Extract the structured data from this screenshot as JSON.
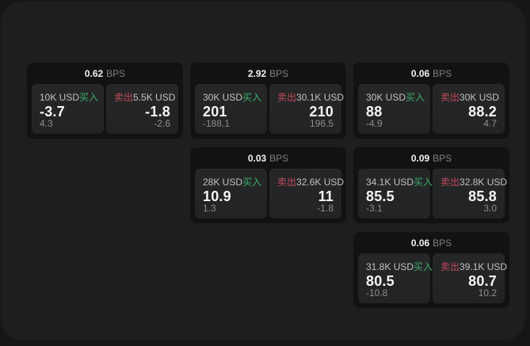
{
  "page": {
    "bg_outer": "#161616",
    "panel_bg": "#1d1e1e",
    "card_bg": "#121213",
    "tile_bg": "#242526",
    "accent_green": "#3fae6e",
    "accent_red": "#c34a5c"
  },
  "labels": {
    "bps_suffix": "BPS",
    "buy": "买入",
    "sell": "卖出"
  },
  "cards": [
    {
      "col": 1,
      "row": 1,
      "bps": "0.62",
      "buy": {
        "amount": "10K USD",
        "value": "-3.7",
        "sub": "4.3"
      },
      "sell": {
        "amount": "5.5K USD",
        "value": "-1.8",
        "sub": "-2.6"
      }
    },
    {
      "col": 2,
      "row": 1,
      "bps": "2.92",
      "buy": {
        "amount": "30K USD",
        "value": "201",
        "sub": "-188.1"
      },
      "sell": {
        "amount": "30.1K USD",
        "value": "210",
        "sub": "196.5"
      }
    },
    {
      "col": 3,
      "row": 1,
      "bps": "0.06",
      "buy": {
        "amount": "30K USD",
        "value": "88",
        "sub": "-4.9"
      },
      "sell": {
        "amount": "30K USD",
        "value": "88.2",
        "sub": "4.7"
      }
    },
    {
      "col": 2,
      "row": 2,
      "bps": "0.03",
      "buy": {
        "amount": "28K USD",
        "value": "10.9",
        "sub": "1.3"
      },
      "sell": {
        "amount": "32.6K USD",
        "value": "11",
        "sub": "-1.8"
      }
    },
    {
      "col": 3,
      "row": 2,
      "bps": "0.09",
      "buy": {
        "amount": "34.1K USD",
        "value": "85.5",
        "sub": "-3.1"
      },
      "sell": {
        "amount": "32.8K USD",
        "value": "85.8",
        "sub": "3.0"
      }
    },
    {
      "col": 3,
      "row": 3,
      "bps": "0.06",
      "buy": {
        "amount": "31.8K USD",
        "value": "80.5",
        "sub": "-10.8"
      },
      "sell": {
        "amount": "39.1K USD",
        "value": "80.7",
        "sub": "10.2"
      }
    }
  ]
}
